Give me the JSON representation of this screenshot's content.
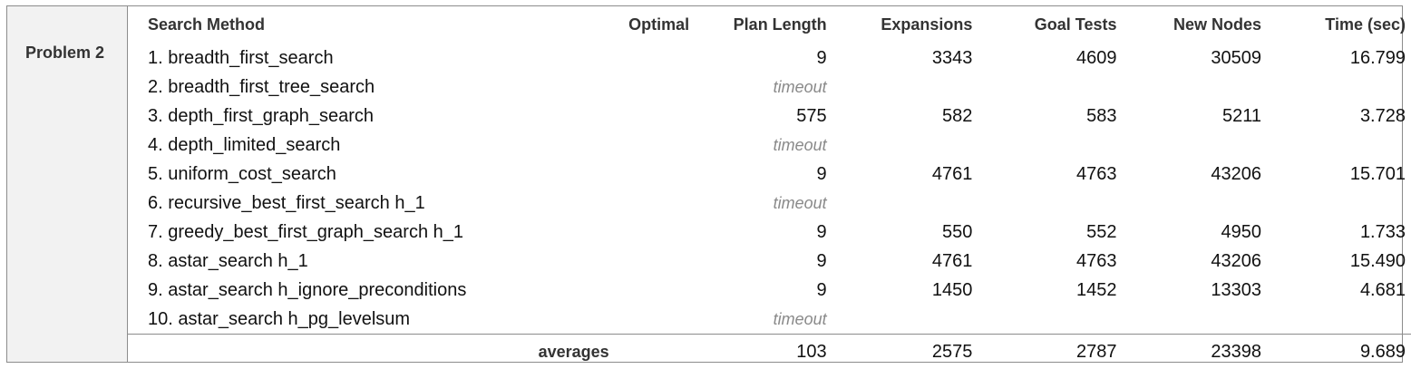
{
  "problem_label": "Problem 2",
  "headers": {
    "method": "Search Method",
    "optimal": "Optimal",
    "plan_length": "Plan Length",
    "expansions": "Expansions",
    "goal_tests": "Goal Tests",
    "new_nodes": "New Nodes",
    "time": "Time (sec)"
  },
  "rows": [
    {
      "method": "1. breadth_first_search",
      "optimal": "",
      "plan_length": "9",
      "expansions": "3343",
      "goal_tests": "4609",
      "new_nodes": "30509",
      "time": "16.799"
    },
    {
      "method": "2. breadth_first_tree_search",
      "optimal": "",
      "plan_length": "timeout",
      "expansions": "",
      "goal_tests": "",
      "new_nodes": "",
      "time": ""
    },
    {
      "method": "3. depth_first_graph_search",
      "optimal": "",
      "plan_length": "575",
      "expansions": "582",
      "goal_tests": "583",
      "new_nodes": "5211",
      "time": "3.728"
    },
    {
      "method": "4. depth_limited_search",
      "optimal": "",
      "plan_length": "timeout",
      "expansions": "",
      "goal_tests": "",
      "new_nodes": "",
      "time": ""
    },
    {
      "method": "5. uniform_cost_search",
      "optimal": "",
      "plan_length": "9",
      "expansions": "4761",
      "goal_tests": "4763",
      "new_nodes": "43206",
      "time": "15.701"
    },
    {
      "method": "6. recursive_best_first_search h_1",
      "optimal": "",
      "plan_length": "timeout",
      "expansions": "",
      "goal_tests": "",
      "new_nodes": "",
      "time": ""
    },
    {
      "method": "7. greedy_best_first_graph_search h_1",
      "optimal": "",
      "plan_length": "9",
      "expansions": "550",
      "goal_tests": "552",
      "new_nodes": "4950",
      "time": "1.733"
    },
    {
      "method": "8. astar_search h_1",
      "optimal": "",
      "plan_length": "9",
      "expansions": "4761",
      "goal_tests": "4763",
      "new_nodes": "43206",
      "time": "15.490"
    },
    {
      "method": "9. astar_search h_ignore_preconditions",
      "optimal": "",
      "plan_length": "9",
      "expansions": "1450",
      "goal_tests": "1452",
      "new_nodes": "13303",
      "time": "4.681"
    },
    {
      "method": "10. astar_search h_pg_levelsum",
      "optimal": "",
      "plan_length": "timeout",
      "expansions": "",
      "goal_tests": "",
      "new_nodes": "",
      "time": ""
    }
  ],
  "averages": {
    "label": "averages",
    "plan_length": "103",
    "expansions": "2575",
    "goal_tests": "2787",
    "new_nodes": "23398",
    "time": "9.689"
  }
}
